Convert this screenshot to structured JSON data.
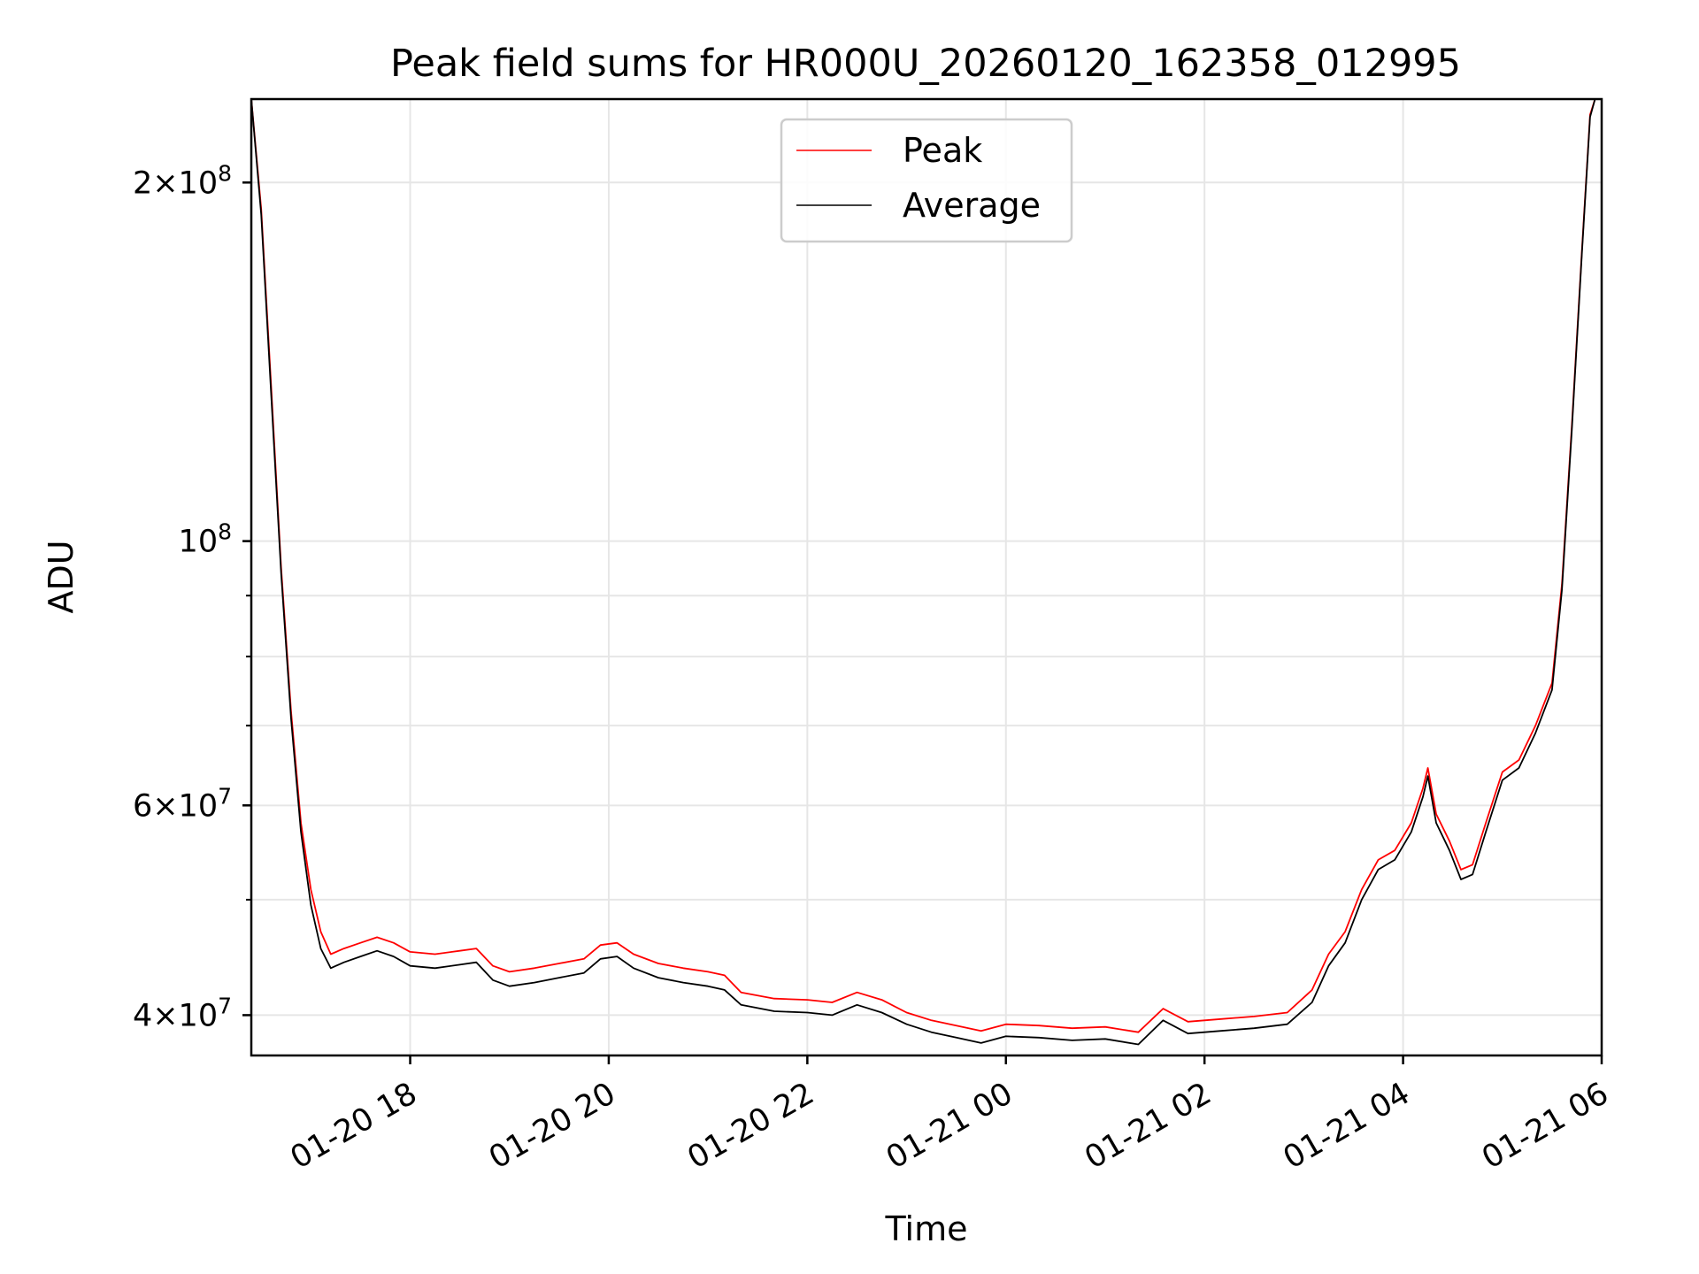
{
  "chart_data": {
    "type": "line",
    "title": "Peak field sums for HR000U_20260120_162358_012995",
    "xlabel": "Time",
    "ylabel": "ADU",
    "x_scale": "time",
    "y_scale": "log",
    "xlim": [
      "2026-01-20 16:24",
      "2026-01-21 06:00"
    ],
    "ylim": [
      37000000,
      235000000
    ],
    "x_ticks": [
      {
        "value": "2026-01-20 18:00",
        "label": "01-20 18"
      },
      {
        "value": "2026-01-20 20:00",
        "label": "01-20 20"
      },
      {
        "value": "2026-01-20 22:00",
        "label": "01-20 22"
      },
      {
        "value": "2026-01-21 00:00",
        "label": "01-21 00"
      },
      {
        "value": "2026-01-21 02:00",
        "label": "01-21 02"
      },
      {
        "value": "2026-01-21 04:00",
        "label": "01-21 04"
      },
      {
        "value": "2026-01-21 06:00",
        "label": "01-21 06"
      }
    ],
    "y_ticks": [
      {
        "value": 40000000,
        "mantissa": "4",
        "exp": "7"
      },
      {
        "value": 60000000,
        "mantissa": "6",
        "exp": "7"
      },
      {
        "value": 100000000,
        "mantissa": "",
        "exp": "8"
      },
      {
        "value": 200000000,
        "mantissa": "2",
        "exp": "8"
      }
    ],
    "y_minor_ticks": [
      50000000,
      70000000,
      80000000,
      90000000
    ],
    "grid": true,
    "legend": {
      "position": "top-center"
    },
    "series": [
      {
        "name": "Peak",
        "color": "#ff0000",
        "points": [
          [
            "2026-01-20 16:24",
            235000000
          ],
          [
            "2026-01-20 16:30",
            190000000
          ],
          [
            "2026-01-20 16:36",
            135000000
          ],
          [
            "2026-01-20 16:42",
            95000000
          ],
          [
            "2026-01-20 16:48",
            72000000
          ],
          [
            "2026-01-20 16:54",
            58000000
          ],
          [
            "2026-01-20 17:00",
            51000000
          ],
          [
            "2026-01-20 17:06",
            47000000
          ],
          [
            "2026-01-20 17:12",
            45000000
          ],
          [
            "2026-01-20 17:20",
            45500000
          ],
          [
            "2026-01-20 17:30",
            46000000
          ],
          [
            "2026-01-20 17:40",
            46500000
          ],
          [
            "2026-01-20 17:50",
            46000000
          ],
          [
            "2026-01-20 18:00",
            45200000
          ],
          [
            "2026-01-20 18:15",
            45000000
          ],
          [
            "2026-01-20 18:30",
            45300000
          ],
          [
            "2026-01-20 18:40",
            45500000
          ],
          [
            "2026-01-20 18:50",
            44000000
          ],
          [
            "2026-01-20 19:00",
            43500000
          ],
          [
            "2026-01-20 19:15",
            43800000
          ],
          [
            "2026-01-20 19:30",
            44200000
          ],
          [
            "2026-01-20 19:45",
            44600000
          ],
          [
            "2026-01-20 19:55",
            45800000
          ],
          [
            "2026-01-20 20:05",
            46000000
          ],
          [
            "2026-01-20 20:15",
            45000000
          ],
          [
            "2026-01-20 20:30",
            44200000
          ],
          [
            "2026-01-20 20:45",
            43800000
          ],
          [
            "2026-01-20 21:00",
            43500000
          ],
          [
            "2026-01-20 21:10",
            43200000
          ],
          [
            "2026-01-20 21:20",
            41800000
          ],
          [
            "2026-01-20 21:40",
            41300000
          ],
          [
            "2026-01-20 22:00",
            41200000
          ],
          [
            "2026-01-20 22:15",
            41000000
          ],
          [
            "2026-01-20 22:30",
            41800000
          ],
          [
            "2026-01-20 22:45",
            41200000
          ],
          [
            "2026-01-20 23:00",
            40200000
          ],
          [
            "2026-01-20 23:15",
            39600000
          ],
          [
            "2026-01-20 23:30",
            39200000
          ],
          [
            "2026-01-20 23:45",
            38800000
          ],
          [
            "2026-01-21 00:00",
            39300000
          ],
          [
            "2026-01-21 00:20",
            39200000
          ],
          [
            "2026-01-21 00:40",
            39000000
          ],
          [
            "2026-01-21 01:00",
            39100000
          ],
          [
            "2026-01-21 01:20",
            38700000
          ],
          [
            "2026-01-21 01:35",
            40500000
          ],
          [
            "2026-01-21 01:50",
            39500000
          ],
          [
            "2026-01-21 02:10",
            39700000
          ],
          [
            "2026-01-21 02:30",
            39900000
          ],
          [
            "2026-01-21 02:50",
            40200000
          ],
          [
            "2026-01-21 03:05",
            42000000
          ],
          [
            "2026-01-21 03:15",
            45000000
          ],
          [
            "2026-01-21 03:25",
            47000000
          ],
          [
            "2026-01-21 03:35",
            51000000
          ],
          [
            "2026-01-21 03:45",
            54000000
          ],
          [
            "2026-01-21 03:55",
            55000000
          ],
          [
            "2026-01-21 04:05",
            58000000
          ],
          [
            "2026-01-21 04:12",
            62000000
          ],
          [
            "2026-01-21 04:15",
            64500000
          ],
          [
            "2026-01-21 04:20",
            59000000
          ],
          [
            "2026-01-21 04:28",
            56000000
          ],
          [
            "2026-01-21 04:35",
            53000000
          ],
          [
            "2026-01-21 04:42",
            53500000
          ],
          [
            "2026-01-21 04:50",
            58000000
          ],
          [
            "2026-01-21 05:00",
            64000000
          ],
          [
            "2026-01-21 05:10",
            65500000
          ],
          [
            "2026-01-21 05:20",
            70000000
          ],
          [
            "2026-01-21 05:30",
            76000000
          ],
          [
            "2026-01-21 05:36",
            92000000
          ],
          [
            "2026-01-21 05:42",
            125000000
          ],
          [
            "2026-01-21 05:48",
            175000000
          ],
          [
            "2026-01-21 05:53",
            228000000
          ],
          [
            "2026-01-21 05:56",
            235000000
          ]
        ]
      },
      {
        "name": "Average",
        "color": "#000000",
        "points": [
          [
            "2026-01-20 16:24",
            235000000
          ],
          [
            "2026-01-20 16:30",
            188000000
          ],
          [
            "2026-01-20 16:36",
            133000000
          ],
          [
            "2026-01-20 16:42",
            94000000
          ],
          [
            "2026-01-20 16:48",
            71000000
          ],
          [
            "2026-01-20 16:54",
            57000000
          ],
          [
            "2026-01-20 17:00",
            49500000
          ],
          [
            "2026-01-20 17:06",
            45500000
          ],
          [
            "2026-01-20 17:12",
            43800000
          ],
          [
            "2026-01-20 17:20",
            44300000
          ],
          [
            "2026-01-20 17:30",
            44800000
          ],
          [
            "2026-01-20 17:40",
            45300000
          ],
          [
            "2026-01-20 17:50",
            44800000
          ],
          [
            "2026-01-20 18:00",
            44000000
          ],
          [
            "2026-01-20 18:15",
            43800000
          ],
          [
            "2026-01-20 18:30",
            44100000
          ],
          [
            "2026-01-20 18:40",
            44300000
          ],
          [
            "2026-01-20 18:50",
            42800000
          ],
          [
            "2026-01-20 19:00",
            42300000
          ],
          [
            "2026-01-20 19:15",
            42600000
          ],
          [
            "2026-01-20 19:30",
            43000000
          ],
          [
            "2026-01-20 19:45",
            43400000
          ],
          [
            "2026-01-20 19:55",
            44600000
          ],
          [
            "2026-01-20 20:05",
            44800000
          ],
          [
            "2026-01-20 20:15",
            43800000
          ],
          [
            "2026-01-20 20:30",
            43000000
          ],
          [
            "2026-01-20 20:45",
            42600000
          ],
          [
            "2026-01-20 21:00",
            42300000
          ],
          [
            "2026-01-20 21:10",
            42000000
          ],
          [
            "2026-01-20 21:20",
            40800000
          ],
          [
            "2026-01-20 21:40",
            40300000
          ],
          [
            "2026-01-20 22:00",
            40200000
          ],
          [
            "2026-01-20 22:15",
            40000000
          ],
          [
            "2026-01-20 22:30",
            40800000
          ],
          [
            "2026-01-20 22:45",
            40200000
          ],
          [
            "2026-01-20 23:00",
            39300000
          ],
          [
            "2026-01-20 23:15",
            38700000
          ],
          [
            "2026-01-20 23:30",
            38300000
          ],
          [
            "2026-01-20 23:45",
            37900000
          ],
          [
            "2026-01-21 00:00",
            38400000
          ],
          [
            "2026-01-21 00:20",
            38300000
          ],
          [
            "2026-01-21 00:40",
            38100000
          ],
          [
            "2026-01-21 01:00",
            38200000
          ],
          [
            "2026-01-21 01:20",
            37800000
          ],
          [
            "2026-01-21 01:35",
            39600000
          ],
          [
            "2026-01-21 01:50",
            38600000
          ],
          [
            "2026-01-21 02:10",
            38800000
          ],
          [
            "2026-01-21 02:30",
            39000000
          ],
          [
            "2026-01-21 02:50",
            39300000
          ],
          [
            "2026-01-21 03:05",
            41000000
          ],
          [
            "2026-01-21 03:15",
            44000000
          ],
          [
            "2026-01-21 03:25",
            46000000
          ],
          [
            "2026-01-21 03:35",
            50000000
          ],
          [
            "2026-01-21 03:45",
            53000000
          ],
          [
            "2026-01-21 03:55",
            54000000
          ],
          [
            "2026-01-21 04:05",
            57000000
          ],
          [
            "2026-01-21 04:12",
            61000000
          ],
          [
            "2026-01-21 04:15",
            63500000
          ],
          [
            "2026-01-21 04:20",
            58000000
          ],
          [
            "2026-01-21 04:28",
            55000000
          ],
          [
            "2026-01-21 04:35",
            52000000
          ],
          [
            "2026-01-21 04:42",
            52500000
          ],
          [
            "2026-01-21 04:50",
            57000000
          ],
          [
            "2026-01-21 05:00",
            63000000
          ],
          [
            "2026-01-21 05:10",
            64500000
          ],
          [
            "2026-01-21 05:20",
            69000000
          ],
          [
            "2026-01-21 05:30",
            75000000
          ],
          [
            "2026-01-21 05:36",
            91000000
          ],
          [
            "2026-01-21 05:42",
            124000000
          ],
          [
            "2026-01-21 05:48",
            174000000
          ],
          [
            "2026-01-21 05:53",
            227000000
          ],
          [
            "2026-01-21 05:56",
            235000000
          ]
        ]
      }
    ]
  }
}
